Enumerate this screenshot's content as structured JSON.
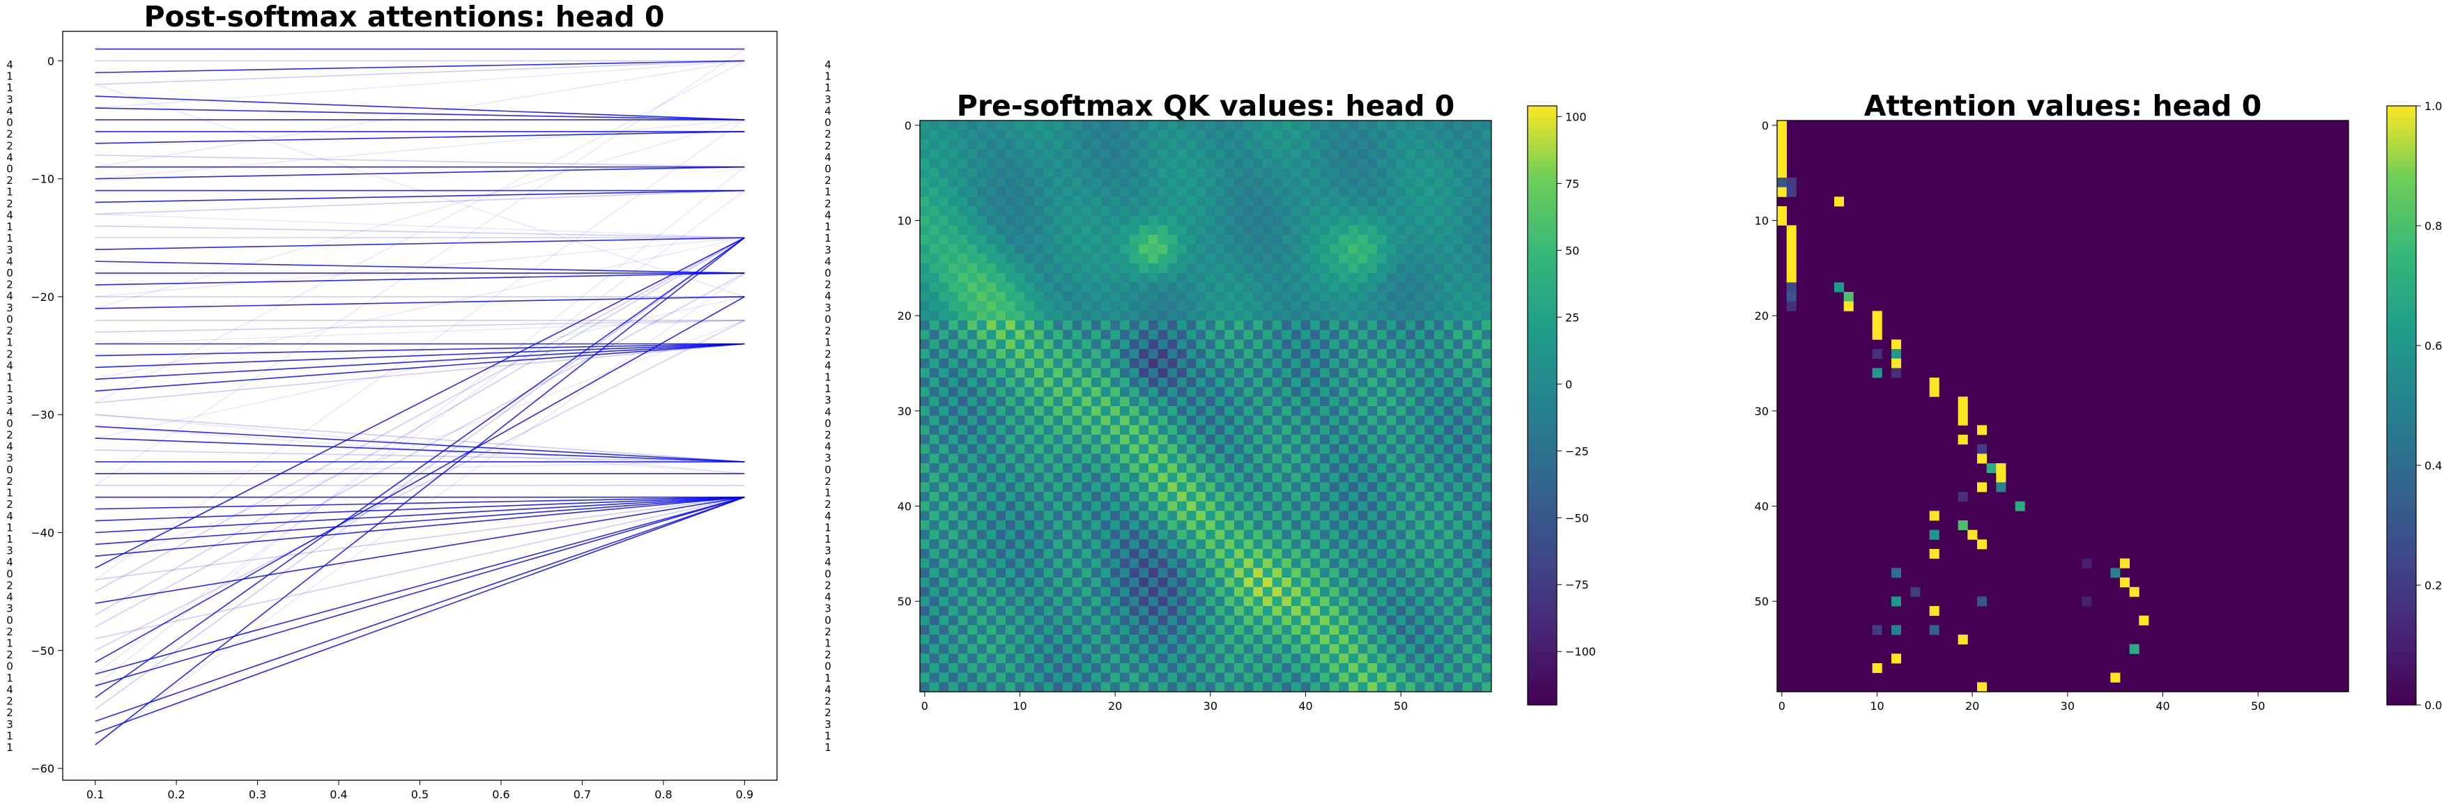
{
  "chart_data": [
    {
      "type": "line",
      "title": "Post-softmax attentions: head 0",
      "xlim": [
        0.06,
        0.94
      ],
      "ylim": [
        -61,
        2.5
      ],
      "x_ticks": [
        0.1,
        0.2,
        0.3,
        0.4,
        0.5,
        0.6,
        0.7,
        0.8,
        0.9
      ],
      "y_ticks": [
        0,
        -10,
        -20,
        -30,
        -40,
        -50,
        -60
      ],
      "left_tokens": [
        "4",
        "1",
        "1",
        "3",
        "4",
        "0",
        "2",
        "2",
        "4",
        "0",
        "2",
        "1",
        "2",
        "4",
        "1",
        "1",
        "3",
        "4",
        "0",
        "2",
        "4",
        "3",
        "0",
        "2",
        "1",
        "2",
        "4",
        "1",
        "1",
        "3",
        "4",
        "0",
        "2",
        "4",
        "3",
        "0",
        "2",
        "1",
        "2",
        "4",
        "1",
        "1",
        "3",
        "4",
        "0",
        "2",
        "4",
        "3",
        "0",
        "2",
        "1",
        "2",
        "0",
        "1",
        "4",
        "2",
        "2",
        "3",
        "1",
        "1"
      ],
      "right_tokens": [
        "4",
        "1",
        "1",
        "3",
        "4",
        "0",
        "2",
        "2",
        "4",
        "0",
        "2",
        "1",
        "2",
        "4",
        "1",
        "1",
        "3",
        "4",
        "0",
        "2",
        "4",
        "3",
        "0",
        "2",
        "1",
        "2",
        "4",
        "1",
        "1",
        "3",
        "4",
        "0",
        "2",
        "4",
        "3",
        "0",
        "2",
        "1",
        "2",
        "4",
        "1",
        "1",
        "3",
        "4",
        "0",
        "2",
        "4",
        "3",
        "0",
        "2",
        "1",
        "2",
        "0",
        "1",
        "4",
        "2",
        "2",
        "3",
        "1",
        "1"
      ]
    },
    {
      "type": "heatmap",
      "title": "Pre-softmax QK values: head 0",
      "x_ticks": [
        0,
        10,
        20,
        30,
        40,
        50
      ],
      "y_ticks": [
        0,
        10,
        20,
        30,
        40,
        50
      ],
      "colorbar_ticks": [
        100,
        75,
        50,
        25,
        0,
        -25,
        -50,
        -75,
        -100
      ],
      "vmin": -120,
      "vmax": 104,
      "size": 60
    },
    {
      "type": "heatmap",
      "title": "Attention values: head 0",
      "x_ticks": [
        0,
        10,
        20,
        30,
        40,
        50
      ],
      "y_ticks": [
        0,
        10,
        20,
        30,
        40,
        50
      ],
      "colorbar_ticks": [
        1.0,
        0.8,
        0.6,
        0.4,
        0.2,
        0.0
      ],
      "vmin": 0,
      "vmax": 1,
      "size": 60,
      "active_cells": [
        [
          0,
          0,
          1
        ],
        [
          1,
          0,
          1
        ],
        [
          2,
          0,
          1
        ],
        [
          3,
          0,
          1
        ],
        [
          4,
          0,
          1
        ],
        [
          5,
          0,
          1
        ],
        [
          6,
          0,
          0.3
        ],
        [
          7,
          0,
          1
        ],
        [
          9,
          0,
          1
        ],
        [
          10,
          0,
          1
        ],
        [
          6,
          1,
          0.2
        ],
        [
          7,
          1,
          0.2
        ],
        [
          11,
          1,
          1
        ],
        [
          12,
          1,
          1
        ],
        [
          13,
          1,
          1
        ],
        [
          14,
          1,
          1
        ],
        [
          15,
          1,
          1
        ],
        [
          16,
          1,
          1
        ],
        [
          17,
          1,
          0.25
        ],
        [
          18,
          1,
          0.3
        ],
        [
          19,
          1,
          0.15
        ],
        [
          8,
          6,
          1
        ],
        [
          17,
          6,
          0.6
        ],
        [
          18,
          7,
          0.8
        ],
        [
          19,
          7,
          1
        ],
        [
          20,
          10,
          1
        ],
        [
          21,
          10,
          1
        ],
        [
          22,
          10,
          1
        ],
        [
          24,
          10,
          0.15
        ],
        [
          26,
          10,
          0.6
        ],
        [
          23,
          12,
          1
        ],
        [
          24,
          12,
          0.6
        ],
        [
          25,
          12,
          1
        ],
        [
          26,
          12,
          0.15
        ],
        [
          27,
          16,
          1
        ],
        [
          28,
          16,
          1
        ],
        [
          29,
          19,
          1
        ],
        [
          30,
          19,
          1
        ],
        [
          31,
          19,
          1
        ],
        [
          32,
          21,
          1
        ],
        [
          33,
          19,
          1
        ],
        [
          34,
          21,
          0.2
        ],
        [
          35,
          21,
          1
        ],
        [
          36,
          22,
          0.7
        ],
        [
          37,
          23,
          1
        ],
        [
          36,
          23,
          1
        ],
        [
          38,
          21,
          1
        ],
        [
          38,
          23,
          0.5
        ],
        [
          39,
          19,
          0.15
        ],
        [
          40,
          25,
          0.7
        ],
        [
          41,
          16,
          1
        ],
        [
          42,
          19,
          0.8
        ],
        [
          43,
          20,
          1
        ],
        [
          43,
          16,
          0.6
        ],
        [
          44,
          21,
          1
        ],
        [
          45,
          16,
          1
        ],
        [
          46,
          32,
          0.1
        ],
        [
          46,
          36,
          1
        ],
        [
          47,
          12,
          0.4
        ],
        [
          47,
          35,
          0.5
        ],
        [
          48,
          36,
          1
        ],
        [
          49,
          14,
          0.2
        ],
        [
          49,
          37,
          1
        ],
        [
          50,
          12,
          0.6
        ],
        [
          50,
          21,
          0.3
        ],
        [
          50,
          32,
          0.1
        ],
        [
          51,
          16,
          1
        ],
        [
          52,
          38,
          1
        ],
        [
          53,
          10,
          0.2
        ],
        [
          53,
          12,
          0.5
        ],
        [
          53,
          16,
          0.35
        ],
        [
          54,
          19,
          1
        ],
        [
          55,
          37,
          0.7
        ],
        [
          56,
          12,
          1
        ],
        [
          57,
          10,
          1
        ],
        [
          58,
          35,
          1
        ],
        [
          59,
          21,
          1
        ]
      ]
    }
  ]
}
